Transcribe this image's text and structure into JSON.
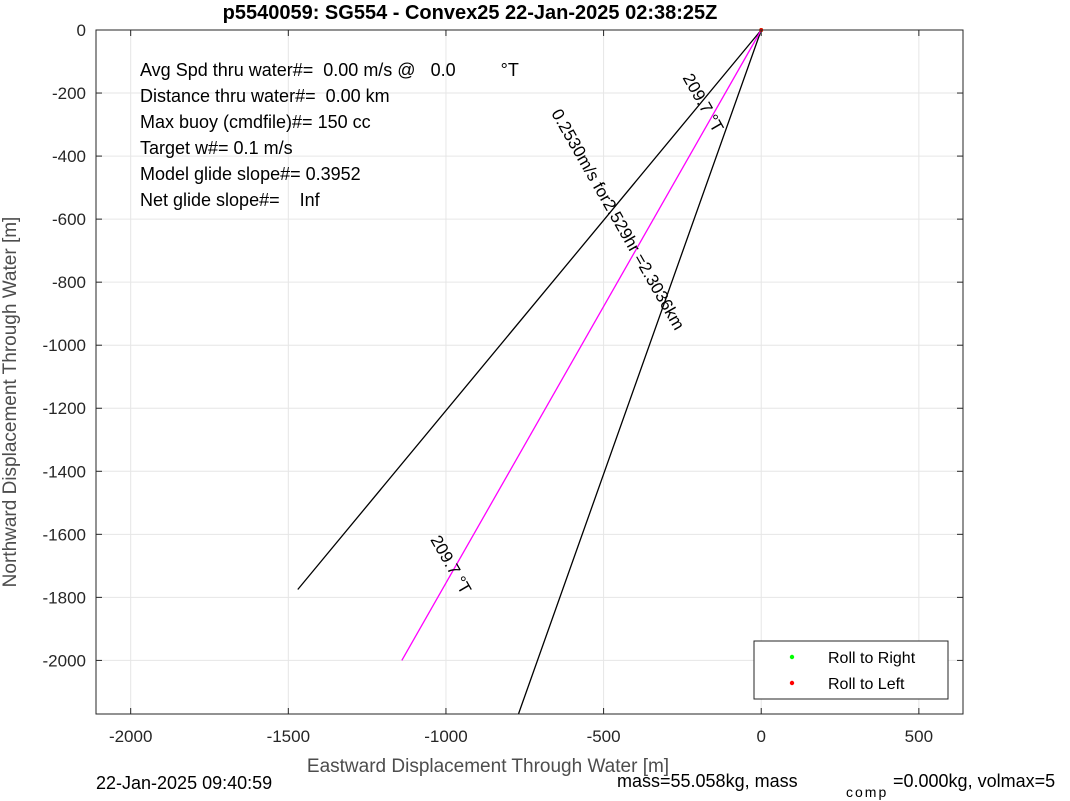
{
  "chart_data": {
    "type": "line",
    "title": "p5540059: SG554 - Convex25 22-Jan-2025 02:38:25Z",
    "xlabel": "Eastward Displacement Through Water [m]",
    "ylabel": "Northward Displacement Through Water [m]",
    "xlim": [
      -2110,
      640
    ],
    "ylim": [
      -2170,
      0
    ],
    "xticks": [
      -2000,
      -1500,
      -1000,
      -500,
      0,
      500
    ],
    "xtick_labels": [
      "-2000",
      "-1500",
      "-1000",
      "-500",
      "0",
      "500"
    ],
    "yticks": [
      0,
      -200,
      -400,
      -600,
      -800,
      -1000,
      -1200,
      -1400,
      -1600,
      -1800,
      -2000
    ],
    "ytick_labels": [
      "0",
      "-200",
      "-400",
      "-600",
      "-800",
      "-1000",
      "-1200",
      "-1400",
      "-1600",
      "-1800",
      "-2000"
    ],
    "grid": true,
    "legend_position": "bottom-right",
    "series": [
      {
        "name": "Roll to Right",
        "color": "#00ff00",
        "marker": "dot",
        "x": [
          0
        ],
        "y": [
          0
        ]
      },
      {
        "name": "Roll to Left",
        "color": "#ff0000",
        "marker": "dot",
        "x": [
          0
        ],
        "y": [
          0
        ]
      }
    ],
    "lines": [
      {
        "id": "cone-left",
        "color": "#000000",
        "x": [
          0,
          -1470
        ],
        "y": [
          0,
          -1775
        ]
      },
      {
        "id": "cone-right",
        "color": "#000000",
        "x": [
          0,
          -770
        ],
        "y": [
          0,
          -2170
        ]
      },
      {
        "id": "heading",
        "color": "#ff00ff",
        "x": [
          0,
          -1140
        ],
        "y": [
          0,
          -2000
        ]
      }
    ],
    "annotations": [
      {
        "id": "avg-spd",
        "text": "Avg Spd thru water#=  0.00 m/s @   0.0         °T"
      },
      {
        "id": "distance",
        "text": "Distance thru water#=  0.00 km"
      },
      {
        "id": "max-buoy",
        "text": "Max buoy (cmdfile)#= 150 cc"
      },
      {
        "id": "target-w",
        "text": "Target w#= 0.1 m/s"
      },
      {
        "id": "model-glide",
        "text": "Model glide slope#= 0.3952"
      },
      {
        "id": "net-glide",
        "text": "Net glide slope#=    Inf"
      }
    ],
    "rotated_labels": [
      {
        "id": "heading-top",
        "text": "209.7 °T",
        "x": -200,
        "y": -240,
        "angle": 60.3
      },
      {
        "id": "speed-info",
        "text": "0.2530m/s for2.529hr =2.3036km",
        "x": -470,
        "y": -610,
        "angle": 60.3
      },
      {
        "id": "heading-bottom",
        "text": "209.7 °T",
        "x": -1000,
        "y": -1705,
        "angle": 60.3
      }
    ]
  },
  "footer": {
    "timestamp": "22-Jan-2025 09:40:59",
    "mass_text": "mass=55.058kg, mass",
    "mass_sub": "comp",
    "mass_rest": "=0.000kg, volmax=5"
  }
}
